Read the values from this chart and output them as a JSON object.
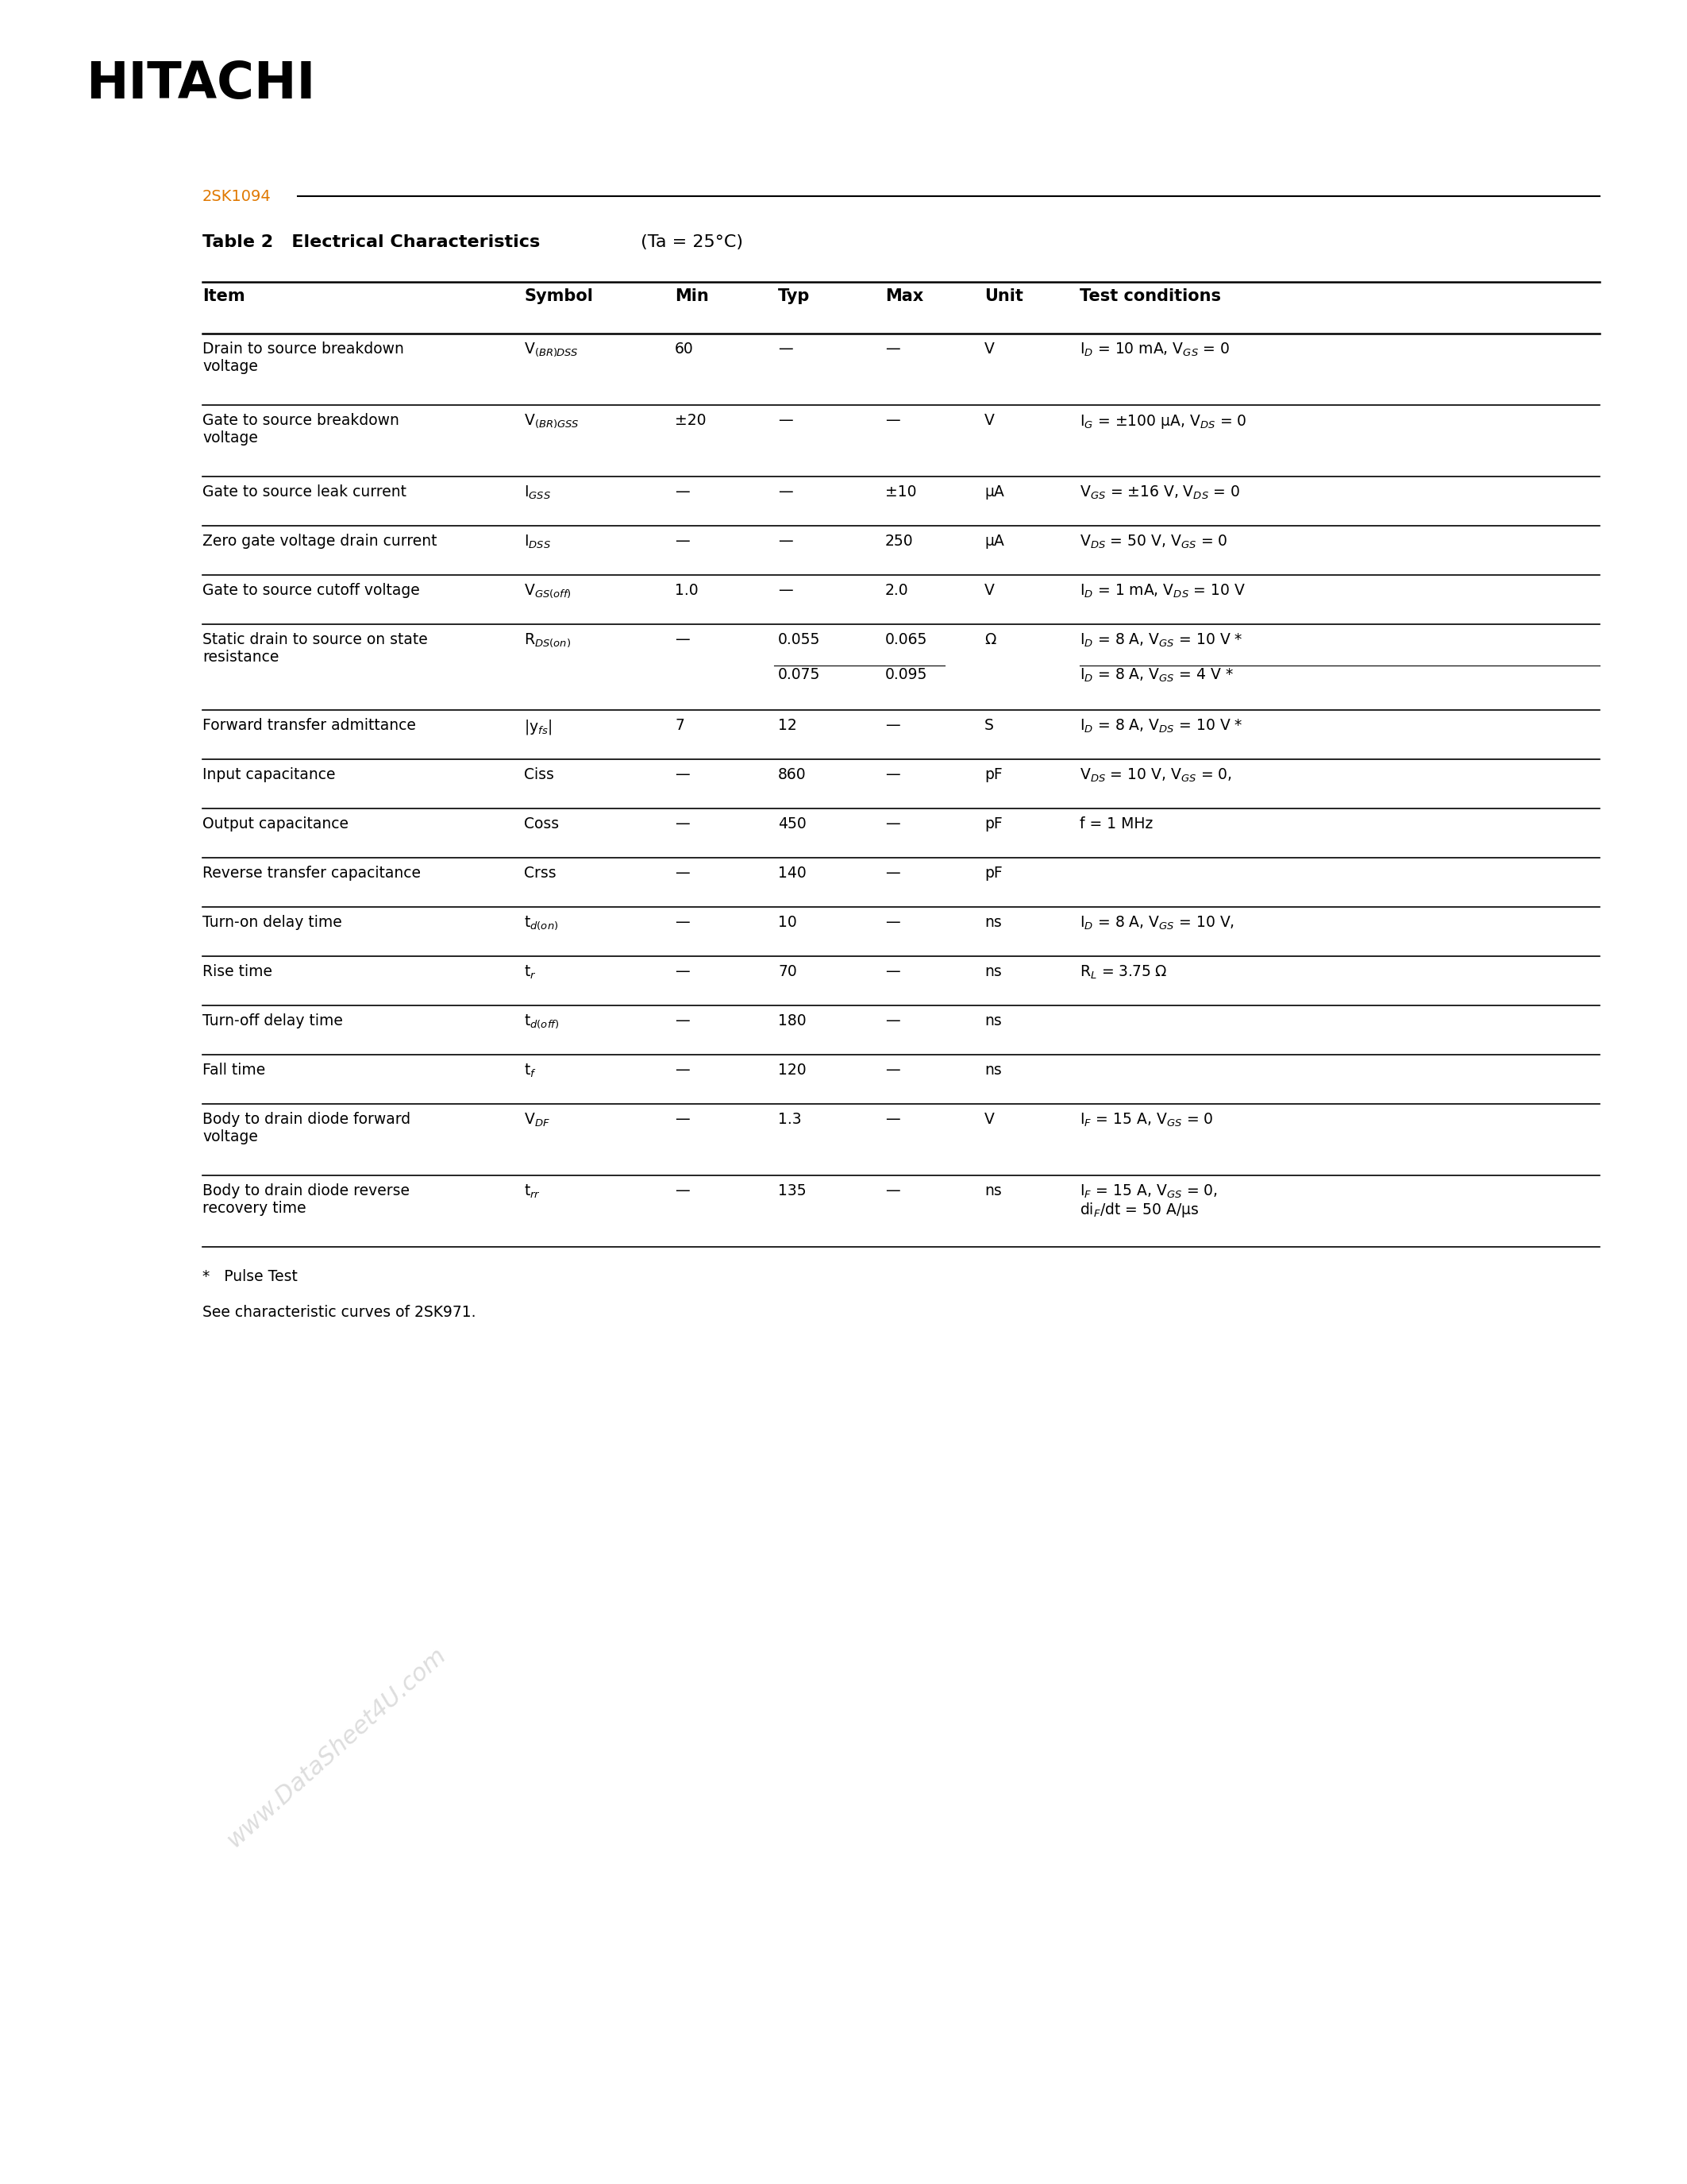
{
  "title_company": "HITACHI",
  "part_number": "2SK1094",
  "table_title_bold": "Table 2   Electrical Characteristics",
  "table_title_normal": " (Ta = 25°C)",
  "background_color": "#ffffff",
  "hitachi_color": "#000000",
  "part_color": "#e07800",
  "rows": [
    {
      "item": "Drain to source breakdown\nvoltage",
      "symbol_display": "V$_{(BR)DSS}$",
      "min": "60",
      "typ": "—",
      "max": "—",
      "unit": "V",
      "cond": "I$_{D}$ = 10 mA, V$_{GS}$ = 0",
      "extra_row": false
    },
    {
      "item": "Gate to source breakdown\nvoltage",
      "symbol_display": "V$_{(BR)GSS}$",
      "min": "±20",
      "typ": "—",
      "max": "—",
      "unit": "V",
      "cond": "I$_{G}$ = ±100 μA, V$_{DS}$ = 0",
      "extra_row": false
    },
    {
      "item": "Gate to source leak current",
      "symbol_display": "I$_{GSS}$",
      "min": "—",
      "typ": "—",
      "max": "±10",
      "unit": "μA",
      "cond": "V$_{GS}$ = ±16 V, V$_{DS}$ = 0",
      "extra_row": false
    },
    {
      "item": "Zero gate voltage drain current",
      "symbol_display": "I$_{DSS}$",
      "min": "—",
      "typ": "—",
      "max": "250",
      "unit": "μA",
      "cond": "V$_{DS}$ = 50 V, V$_{GS}$ = 0",
      "extra_row": false
    },
    {
      "item": "Gate to source cutoff voltage",
      "symbol_display": "V$_{GS(off)}$",
      "min": "1.0",
      "typ": "—",
      "max": "2.0",
      "unit": "V",
      "cond": "I$_{D}$ = 1 mA, V$_{DS}$ = 10 V",
      "extra_row": false
    },
    {
      "item": "Static drain to source on state\nresistance",
      "symbol_display": "R$_{DS(on)}$",
      "min": "—",
      "typ": "0.055",
      "max": "0.065",
      "unit": "Ω",
      "cond": "I$_{D}$ = 8 A, V$_{GS}$ = 10 V *",
      "extra_row": true,
      "extra_typ": "0.075",
      "extra_max": "0.095",
      "extra_cond": "I$_{D}$ = 8 A, V$_{GS}$ = 4 V *"
    },
    {
      "item": "Forward transfer admittance",
      "symbol_display": "|y$_{fs}$|",
      "min": "7",
      "typ": "12",
      "max": "—",
      "unit": "S",
      "cond": "I$_{D}$ = 8 A, V$_{DS}$ = 10 V *",
      "extra_row": false
    },
    {
      "item": "Input capacitance",
      "symbol_display": "Ciss",
      "min": "—",
      "typ": "860",
      "max": "—",
      "unit": "pF",
      "cond": "V$_{DS}$ = 10 V, V$_{GS}$ = 0,",
      "extra_row": false
    },
    {
      "item": "Output capacitance",
      "symbol_display": "Coss",
      "min": "—",
      "typ": "450",
      "max": "—",
      "unit": "pF",
      "cond": "f = 1 MHz",
      "extra_row": false
    },
    {
      "item": "Reverse transfer capacitance",
      "symbol_display": "Crss",
      "min": "—",
      "typ": "140",
      "max": "—",
      "unit": "pF",
      "cond": "",
      "extra_row": false
    },
    {
      "item": "Turn-on delay time",
      "symbol_display": "t$_{d(on)}$",
      "min": "—",
      "typ": "10",
      "max": "—",
      "unit": "ns",
      "cond": "I$_{D}$ = 8 A, V$_{GS}$ = 10 V,",
      "extra_row": false
    },
    {
      "item": "Rise time",
      "symbol_display": "t$_{r}$",
      "min": "—",
      "typ": "70",
      "max": "—",
      "unit": "ns",
      "cond": "R$_{L}$ = 3.75 Ω",
      "extra_row": false
    },
    {
      "item": "Turn-off delay time",
      "symbol_display": "t$_{d(off)}$",
      "min": "—",
      "typ": "180",
      "max": "—",
      "unit": "ns",
      "cond": "",
      "extra_row": false
    },
    {
      "item": "Fall time",
      "symbol_display": "t$_{f}$",
      "min": "—",
      "typ": "120",
      "max": "—",
      "unit": "ns",
      "cond": "",
      "extra_row": false
    },
    {
      "item": "Body to drain diode forward\nvoltage",
      "symbol_display": "V$_{DF}$",
      "min": "—",
      "typ": "1.3",
      "max": "—",
      "unit": "V",
      "cond": "I$_{F}$ = 15 A, V$_{GS}$ = 0",
      "extra_row": false
    },
    {
      "item": "Body to drain diode reverse\nrecovery time",
      "symbol_display": "t$_{rr}$",
      "min": "—",
      "typ": "135",
      "max": "—",
      "unit": "ns",
      "cond": "I$_{F}$ = 15 A, V$_{GS}$ = 0,\ndi$_{F}$/dt = 50 A/μs",
      "extra_row": false
    }
  ],
  "footnote1": "*   Pulse Test",
  "footnote2": "See characteristic curves of 2SK971.",
  "watermark": "www.DataSheet4U.com"
}
